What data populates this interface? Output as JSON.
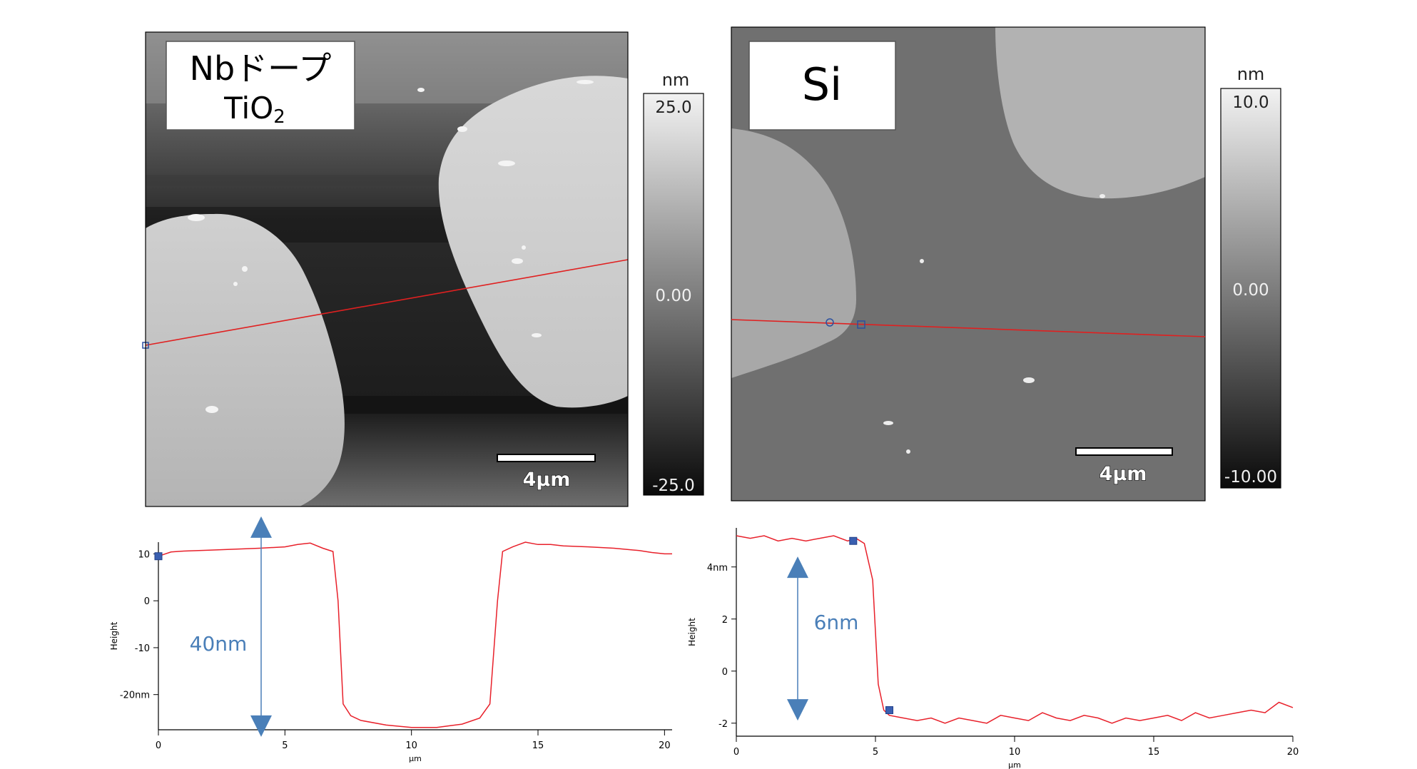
{
  "afm_images": [
    {
      "label_line1": "Nbドープ",
      "label_line2": "TiO",
      "label_subscript": "2",
      "colorbar_unit": "nm",
      "colorbar_max": "25.0",
      "colorbar_mid": "0.00",
      "colorbar_min": "-25.0",
      "scalebar_label": "4μm"
    },
    {
      "label_line1": "Si",
      "colorbar_unit": "nm",
      "colorbar_max": "10.0",
      "colorbar_mid": "0.00",
      "colorbar_min": "-10.00",
      "scalebar_label": "4μm"
    }
  ],
  "chart_data": [
    {
      "type": "line",
      "xlabel": "μm",
      "ylabel": "Height",
      "xlim": [
        0,
        20.3
      ],
      "ylim": [
        -27.5,
        12.5
      ],
      "x_ticks": [
        0,
        5,
        10,
        15,
        20
      ],
      "x_tick_labels": [
        "0",
        "5",
        "10",
        "15",
        "20"
      ],
      "y_ticks": [
        10,
        0,
        -10,
        -20
      ],
      "y_tick_labels": [
        "10",
        "0",
        "-10",
        "-20nm"
      ],
      "series": [
        {
          "color": "#e8202a",
          "x": [
            0,
            0.5,
            1,
            2,
            3,
            4,
            5,
            5.5,
            6,
            6.5,
            6.9,
            7.1,
            7.3,
            7.6,
            8,
            9,
            10,
            11,
            12,
            12.7,
            13.1,
            13.4,
            13.6,
            14,
            14.5,
            15,
            15.5,
            16,
            17,
            18,
            19,
            19.5,
            20,
            20.3
          ],
          "y": [
            9.5,
            10.4,
            10.6,
            10.8,
            11,
            11.2,
            11.5,
            12,
            12.3,
            11.2,
            10.5,
            0,
            -22,
            -24.5,
            -25.5,
            -26.5,
            -27,
            -27,
            -26.3,
            -25,
            -22,
            0,
            10.5,
            11.5,
            12.5,
            12,
            12,
            11.7,
            11.5,
            11.2,
            10.7,
            10.3,
            10,
            10
          ]
        }
      ],
      "markers": [
        {
          "x": 0,
          "y": 9.5
        }
      ],
      "annotation": "40nm",
      "annotation_arrow_y": [
        18,
        -29
      ]
    },
    {
      "type": "line",
      "xlabel": "μm",
      "ylabel": "Height",
      "xlim": [
        0,
        20
      ],
      "ylim": [
        -2.5,
        5.5
      ],
      "x_ticks": [
        0,
        5,
        10,
        15,
        20
      ],
      "x_tick_labels": [
        "0",
        "5",
        "10",
        "15",
        "20"
      ],
      "y_ticks": [
        4,
        2,
        0,
        -2
      ],
      "y_tick_labels": [
        "4nm",
        "2",
        "0",
        "-2"
      ],
      "series": [
        {
          "color": "#e8202a",
          "x": [
            0,
            0.5,
            1,
            1.5,
            2,
            2.5,
            3,
            3.5,
            4,
            4.3,
            4.6,
            4.9,
            5.1,
            5.3,
            5.5,
            6,
            6.5,
            7,
            7.5,
            8,
            8.5,
            9,
            9.5,
            10,
            10.5,
            11,
            11.5,
            12,
            12.5,
            13,
            13.5,
            14,
            14.5,
            15,
            15.5,
            16,
            16.5,
            17,
            17.5,
            18,
            18.5,
            19,
            19.5,
            20
          ],
          "y": [
            5.2,
            5.1,
            5.2,
            5.0,
            5.1,
            5.0,
            5.1,
            5.2,
            5.0,
            5.1,
            4.9,
            3.5,
            -0.5,
            -1.5,
            -1.7,
            -1.8,
            -1.9,
            -1.8,
            -2.0,
            -1.8,
            -1.9,
            -2.0,
            -1.7,
            -1.8,
            -1.9,
            -1.6,
            -1.8,
            -1.9,
            -1.7,
            -1.8,
            -2.0,
            -1.8,
            -1.9,
            -1.8,
            -1.7,
            -1.9,
            -1.6,
            -1.8,
            -1.7,
            -1.6,
            -1.5,
            -1.6,
            -1.2,
            -1.4
          ]
        }
      ],
      "markers": [
        {
          "x": 4.2,
          "y": 5.0
        },
        {
          "x": 5.5,
          "y": -1.5
        }
      ],
      "annotation": "6nm",
      "annotation_arrow_y": [
        4.4,
        -1.9
      ]
    }
  ]
}
